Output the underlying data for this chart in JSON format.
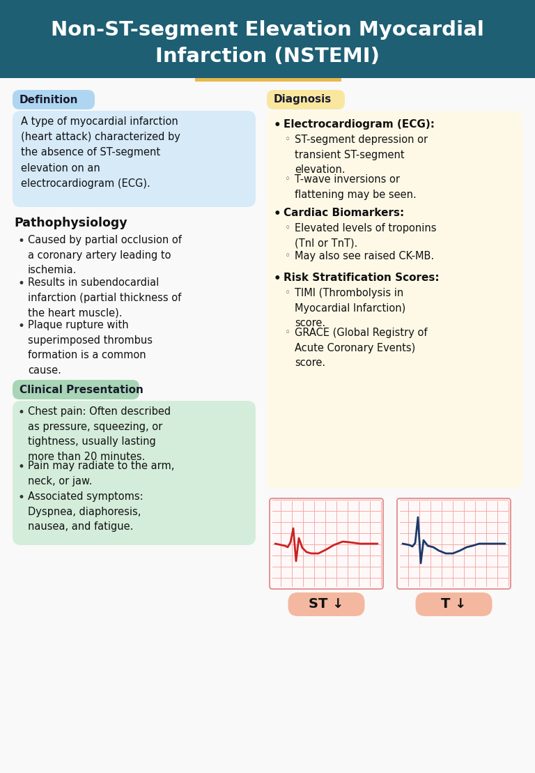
{
  "title_line1": "Non-ST-segment Elevation Myocardial",
  "title_line2": "Infarction (NSTEMI)",
  "title_bg": "#1e5f74",
  "title_color": "#ffffff",
  "bg_color": "#f9f9f9",
  "definition_label": "Definition",
  "definition_label_bg": "#aed6f1",
  "definition_text": "A type of myocardial infarction\n(heart attack) characterized by\nthe absence of ST-segment\nelevation on an\nelectrocardiogram (ECG).",
  "definition_box_bg": "#d6eaf8",
  "pathophysiology_title": "Pathophysiology",
  "pathophysiology_items": [
    "Caused by partial occlusion of\na coronary artery leading to\nischemia.",
    "Results in subendocardial\ninfarction (partial thickness of\nthe heart muscle).",
    "Plaque rupture with\nsuperimposed thrombus\nformation is a common\ncause."
  ],
  "clinical_label": "Clinical Presentation",
  "clinical_label_bg": "#a8d5b5",
  "clinical_box_bg": "#d4edda",
  "clinical_items": [
    "Chest pain: Often described\nas pressure, squeezing, or\ntightness, usually lasting\nmore than 20 minutes.",
    "Pain may radiate to the arm,\nneck, or jaw.",
    "Associated symptoms:\nDyspnea, diaphoresis,\nnausea, and fatigue."
  ],
  "diagnosis_label": "Diagnosis",
  "diagnosis_label_bg": "#f9e79f",
  "diagnosis_box_bg": "#fef9e7",
  "diagnosis_sections": [
    {
      "title": "Electrocardiogram (ECG):",
      "items": [
        "ST-segment depression or\ntransient ST-segment\nelevation.",
        "T-wave inversions or\nflattening may be seen."
      ]
    },
    {
      "title": "Cardiac Biomarkers:",
      "items": [
        "Elevated levels of troponins\n(TnI or TnT).",
        "May also see raised CK-MB."
      ]
    },
    {
      "title": "Risk Stratification Scores:",
      "items": [
        "TIMI (Thrombolysis in\nMyocardial Infarction)\nscore.",
        "GRACE (Global Registry of\nAcute Coronary Events)\nscore."
      ]
    }
  ],
  "st_label": "ST ↓",
  "t_label": "T ↓",
  "ecg_label_bg": "#f4b8a0",
  "ecg_grid_color": "#f0a0a0",
  "ecg_bg": "#fff8f8",
  "ecg_border": "#e08080"
}
